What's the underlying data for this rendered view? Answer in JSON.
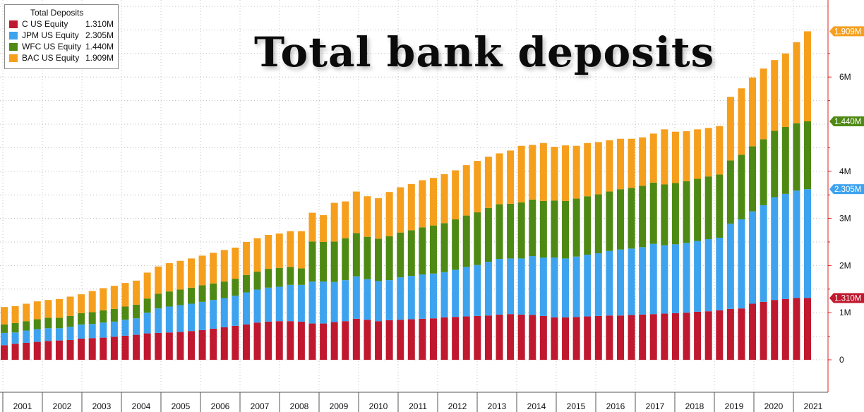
{
  "chart_data": {
    "type": "bar",
    "stacked": true,
    "title": "Total bank deposits",
    "legend": {
      "title": "Total Deposits",
      "placement": "top-left"
    },
    "x_year_labels": [
      "2001",
      "2002",
      "2003",
      "2004",
      "2005",
      "2006",
      "2007",
      "2008",
      "2009",
      "2010",
      "2011",
      "2012",
      "2013",
      "2014",
      "2015",
      "2016",
      "2017",
      "2018",
      "2019",
      "2020",
      "2021"
    ],
    "y_tick_labels": [
      "0",
      "1M",
      "2M",
      "3M",
      "4M",
      "6M"
    ],
    "y_ticks": [
      0,
      1000000,
      2000000,
      3000000,
      4000000,
      6000000
    ],
    "ylim": [
      -700000,
      7500000
    ],
    "grid": true,
    "series": [
      {
        "name": "C US Equity",
        "legend_value": "1.310M",
        "last_label": "1.310M",
        "color": "#c0182e",
        "values": [
          0.31,
          0.34,
          0.36,
          0.38,
          0.4,
          0.41,
          0.42,
          0.45,
          0.46,
          0.47,
          0.49,
          0.51,
          0.53,
          0.56,
          0.57,
          0.58,
          0.59,
          0.61,
          0.63,
          0.66,
          0.69,
          0.72,
          0.75,
          0.79,
          0.81,
          0.82,
          0.82,
          0.81,
          0.77,
          0.77,
          0.8,
          0.82,
          0.87,
          0.85,
          0.82,
          0.84,
          0.85,
          0.86,
          0.87,
          0.88,
          0.9,
          0.91,
          0.92,
          0.93,
          0.94,
          0.96,
          0.97,
          0.96,
          0.95,
          0.93,
          0.9,
          0.9,
          0.91,
          0.92,
          0.93,
          0.94,
          0.94,
          0.95,
          0.96,
          0.97,
          0.98,
          0.99,
          1.0,
          1.02,
          1.03,
          1.05,
          1.08,
          1.09,
          1.19,
          1.23,
          1.27,
          1.29,
          1.31,
          1.31
        ]
      },
      {
        "name": "JPM US Equity",
        "legend_value": "2.305M",
        "last_label": "2.305M",
        "color": "#3ea3ef",
        "values": [
          0.26,
          0.24,
          0.26,
          0.27,
          0.27,
          0.26,
          0.28,
          0.3,
          0.3,
          0.32,
          0.32,
          0.34,
          0.35,
          0.44,
          0.52,
          0.55,
          0.57,
          0.58,
          0.6,
          0.61,
          0.62,
          0.64,
          0.68,
          0.7,
          0.72,
          0.73,
          0.77,
          0.78,
          0.89,
          0.89,
          0.85,
          0.87,
          0.9,
          0.86,
          0.85,
          0.85,
          0.9,
          0.92,
          0.94,
          0.95,
          0.96,
          1.0,
          1.05,
          1.08,
          1.14,
          1.18,
          1.18,
          1.19,
          1.25,
          1.24,
          1.27,
          1.25,
          1.28,
          1.31,
          1.33,
          1.37,
          1.4,
          1.41,
          1.43,
          1.49,
          1.45,
          1.46,
          1.48,
          1.5,
          1.53,
          1.54,
          1.81,
          1.89,
          1.96,
          2.05,
          2.18,
          2.23,
          2.28,
          2.31
        ]
      },
      {
        "name": "WFC US Equity",
        "legend_value": "1.440M",
        "last_label": "1.440M",
        "color": "#4e8a13",
        "values": [
          0.18,
          0.2,
          0.2,
          0.21,
          0.22,
          0.22,
          0.23,
          0.24,
          0.25,
          0.26,
          0.27,
          0.28,
          0.29,
          0.3,
          0.31,
          0.32,
          0.33,
          0.34,
          0.35,
          0.35,
          0.35,
          0.36,
          0.37,
          0.38,
          0.4,
          0.4,
          0.38,
          0.35,
          0.85,
          0.84,
          0.86,
          0.89,
          0.92,
          0.9,
          0.9,
          0.93,
          0.95,
          0.97,
          1.0,
          1.02,
          1.04,
          1.07,
          1.09,
          1.12,
          1.14,
          1.16,
          1.16,
          1.19,
          1.2,
          1.2,
          1.21,
          1.22,
          1.23,
          1.24,
          1.25,
          1.26,
          1.28,
          1.29,
          1.3,
          1.3,
          1.29,
          1.3,
          1.31,
          1.32,
          1.33,
          1.34,
          1.34,
          1.37,
          1.38,
          1.4,
          1.41,
          1.42,
          1.43,
          1.44
        ]
      },
      {
        "name": "BAC US Equity",
        "legend_value": "1.909M",
        "last_label": "1.909M",
        "color": "#f59f1d",
        "values": [
          0.37,
          0.36,
          0.37,
          0.38,
          0.38,
          0.4,
          0.41,
          0.4,
          0.45,
          0.47,
          0.49,
          0.5,
          0.51,
          0.55,
          0.58,
          0.6,
          0.61,
          0.62,
          0.63,
          0.65,
          0.67,
          0.66,
          0.7,
          0.71,
          0.72,
          0.73,
          0.76,
          0.79,
          0.61,
          0.57,
          0.82,
          0.78,
          0.88,
          0.86,
          0.86,
          0.94,
          0.96,
          0.98,
          1.0,
          1.01,
          1.04,
          1.04,
          1.07,
          1.09,
          1.09,
          1.08,
          1.13,
          1.2,
          1.16,
          1.23,
          1.14,
          1.18,
          1.12,
          1.13,
          1.11,
          1.09,
          1.07,
          1.04,
          1.03,
          1.04,
          1.17,
          1.09,
          1.06,
          1.05,
          1.03,
          1.03,
          1.35,
          1.41,
          1.46,
          1.5,
          1.5,
          1.56,
          1.72,
          1.91
        ]
      }
    ]
  }
}
